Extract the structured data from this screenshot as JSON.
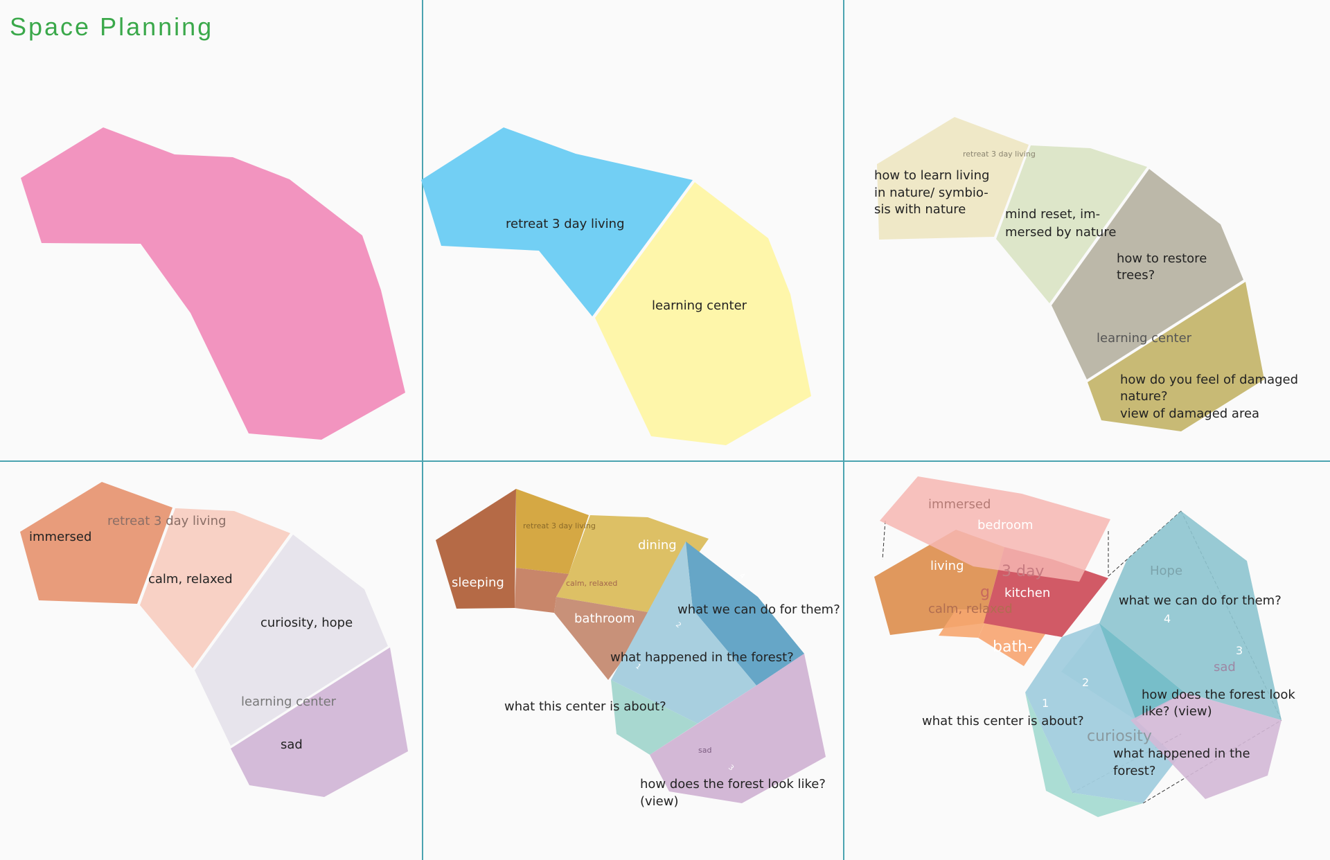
{
  "title": "Space Planning",
  "colors": {
    "title": "#3aa84a",
    "divider": "#4aa3b0",
    "pink": "#f294bf",
    "blue": "#72cff4",
    "yellow": "#fef6aa"
  },
  "panels": {
    "p1": {},
    "p2": {
      "retreat": "retreat 3 day living",
      "learning": "learning center"
    },
    "p3": {
      "retreat_small": "retreat 3 day living",
      "learn_living": [
        "how to learn living",
        "in nature/ symbio-",
        "sis with nature"
      ],
      "mind_reset": [
        "mind reset, im-",
        "mersed by nature"
      ],
      "restore": [
        "how to restore",
        "trees?"
      ],
      "learning": "learning center",
      "damaged": [
        "how do you feel of damaged",
        "nature?",
        "view of damaged area"
      ]
    },
    "p4": {
      "immersed": "immersed",
      "retreat": "retreat 3 day living",
      "calm": "calm, relaxed",
      "curiosity": "curiosity, hope",
      "learning": "learning center",
      "sad": "sad"
    },
    "p5": {
      "retreat_small": "retreat 3 day living",
      "sleeping": "sleeping",
      "dining": "dining",
      "calm_small": "calm, relaxed",
      "bathroom": "bathroom",
      "q_what_we_can_do": "what we can do for them?",
      "q_what_happened": "what happened in the forest?",
      "q_center": "what this center is about?",
      "sad_small": "sad",
      "q_forest_look": [
        "how does the forest look like?",
        "(view)"
      ],
      "n1": "1",
      "n2": "2",
      "n3": "3",
      "n4": "4"
    },
    "p6": {
      "immersed": "immersed",
      "bedroom": "bedroom",
      "three_day": "3 day",
      "living": "living",
      "g": "g",
      "kitchen": "kitchen",
      "calm": "calm, relaxed",
      "bath": "bath-",
      "hope": "Hope",
      "q_what_we_can_do": "what we can do for them?",
      "n4": "4",
      "n3": "3",
      "n2": "2",
      "n1": "1",
      "sad": "sad",
      "q_forest_look": [
        "how does the forest look",
        "like? (view)"
      ],
      "q_center": "what this center is about?",
      "curiosity": "curiosity",
      "q_what_happened": [
        "what happened in the",
        "forest?"
      ]
    }
  }
}
